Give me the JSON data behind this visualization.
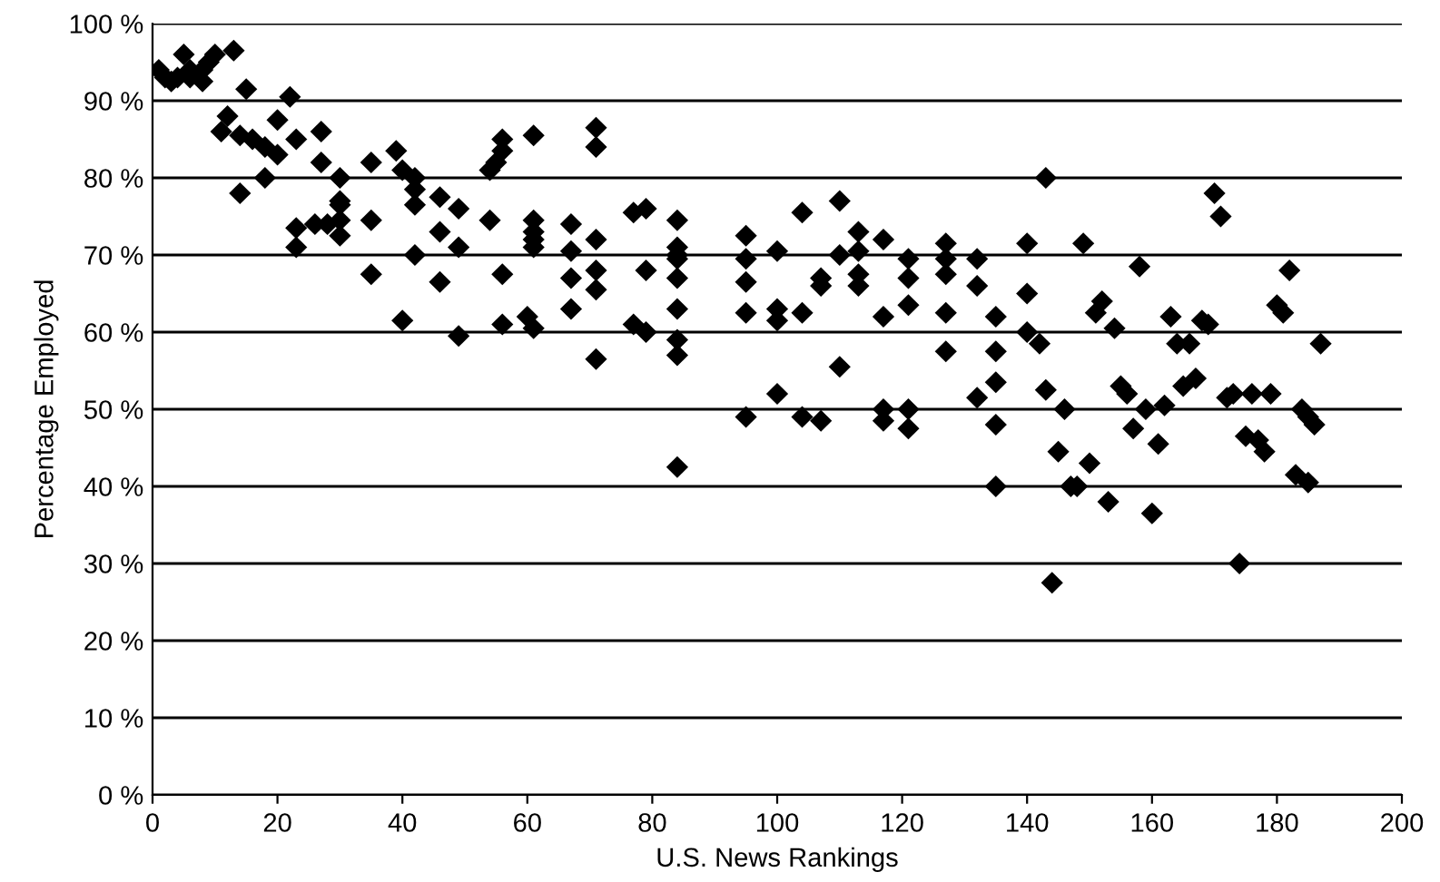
{
  "chart_data": {
    "type": "scatter",
    "xlabel": "U.S. News Rankings",
    "ylabel": "Percentage Employed",
    "marker": "diamond",
    "grid": "y",
    "xlim": [
      0,
      200
    ],
    "xticks": [
      0,
      20,
      40,
      60,
      80,
      100,
      120,
      140,
      160,
      180,
      200
    ],
    "ylim": [
      0,
      100
    ],
    "yticks": [
      {
        "value": 0,
        "label": "0 %"
      },
      {
        "value": 10,
        "label": "10 %"
      },
      {
        "value": 20,
        "label": "20 %"
      },
      {
        "value": 30,
        "label": "30 %"
      },
      {
        "value": 40,
        "label": "40 %"
      },
      {
        "value": 50,
        "label": "50 %"
      },
      {
        "value": 60,
        "label": "60 %"
      },
      {
        "value": 70,
        "label": "70 %"
      },
      {
        "value": 80,
        "label": "80 %"
      },
      {
        "value": 90,
        "label": "90 %"
      },
      {
        "value": 100,
        "label": "100 %"
      }
    ],
    "series": [
      {
        "color": "#000000",
        "x": [
          1,
          2,
          3,
          4,
          5,
          6,
          8,
          9,
          10,
          8,
          6,
          11,
          12,
          13,
          14,
          14,
          15,
          16,
          18,
          18,
          20,
          20,
          22,
          23,
          23,
          23,
          26,
          27,
          27,
          28,
          30,
          30,
          30,
          30,
          30,
          35,
          35,
          35,
          39,
          40,
          40,
          42,
          42,
          42,
          42,
          46,
          46,
          46,
          49,
          49,
          49,
          54,
          54,
          55,
          56,
          56,
          56,
          56,
          61,
          61,
          61,
          61,
          61,
          60,
          61,
          67,
          67,
          67,
          67,
          71,
          71,
          71,
          71,
          71,
          71,
          77,
          77,
          79,
          79,
          79,
          84,
          84,
          84,
          84,
          84,
          84,
          84,
          84,
          84,
          95,
          95,
          95,
          95,
          95,
          100,
          100,
          100,
          100,
          104,
          104,
          104,
          107,
          107,
          107,
          110,
          110,
          110,
          113,
          113,
          113,
          113,
          117,
          117,
          117,
          117,
          121,
          121,
          121,
          121,
          121,
          127,
          127,
          127,
          127,
          127,
          132,
          132,
          132,
          135,
          135,
          135,
          135,
          135,
          140,
          140,
          140,
          142,
          143,
          143,
          144,
          145,
          146,
          147,
          148,
          149,
          150,
          151,
          152,
          153,
          154,
          155,
          156,
          157,
          158,
          159,
          160,
          161,
          162,
          163,
          164,
          165,
          166,
          167,
          168,
          169,
          170,
          171,
          172,
          173,
          174,
          175,
          176,
          177,
          178,
          179,
          180,
          181,
          182,
          183,
          184,
          185,
          185,
          186,
          187
        ],
        "values": [
          94,
          93,
          92.5,
          93,
          96,
          94,
          92.5,
          95,
          96,
          94,
          93,
          86,
          88,
          96.5,
          78,
          85.5,
          91.5,
          85,
          84,
          80,
          83,
          87.5,
          90.5,
          85,
          73.5,
          71,
          74,
          86,
          82,
          74,
          80,
          76.5,
          74.5,
          72.5,
          77,
          82,
          74.5,
          67.5,
          83.5,
          81,
          61.5,
          80,
          78.5,
          76.5,
          70,
          77.5,
          73,
          66.5,
          76,
          71,
          59.5,
          74.5,
          81,
          82,
          85,
          83.5,
          67.5,
          61,
          85.5,
          74.5,
          73,
          72,
          71,
          62,
          60.5,
          74,
          70.5,
          67,
          63,
          86.5,
          84,
          72,
          68,
          65.5,
          56.5,
          75.5,
          61,
          76,
          68,
          60,
          74.5,
          71,
          70,
          69.5,
          67,
          63,
          59,
          57,
          42.5,
          72.5,
          69.5,
          66.5,
          62.5,
          49,
          70.5,
          63,
          61.5,
          52,
          75.5,
          62.5,
          49,
          67,
          66,
          48.5,
          77,
          70,
          55.5,
          73,
          70.5,
          67.5,
          66,
          72,
          62,
          50,
          48.5,
          69.5,
          67,
          63.5,
          50,
          47.5,
          71.5,
          69.5,
          67.5,
          62.5,
          57.5,
          69.5,
          66,
          51.5,
          62,
          57.5,
          53.5,
          48,
          40,
          71.5,
          65,
          60,
          58.5,
          80,
          52.5,
          27.5,
          44.5,
          50,
          40,
          40,
          71.5,
          43,
          62.5,
          64,
          38,
          60.5,
          53,
          52,
          47.5,
          68.5,
          50,
          36.5,
          45.5,
          50.5,
          62,
          58.5,
          53,
          58.5,
          54,
          61.5,
          61,
          78,
          75,
          51.5,
          52,
          30,
          46.5,
          52,
          46,
          44.5,
          52,
          63.5,
          62.5,
          68,
          41.5,
          50,
          49,
          40.5,
          48,
          58.5
        ]
      }
    ]
  }
}
